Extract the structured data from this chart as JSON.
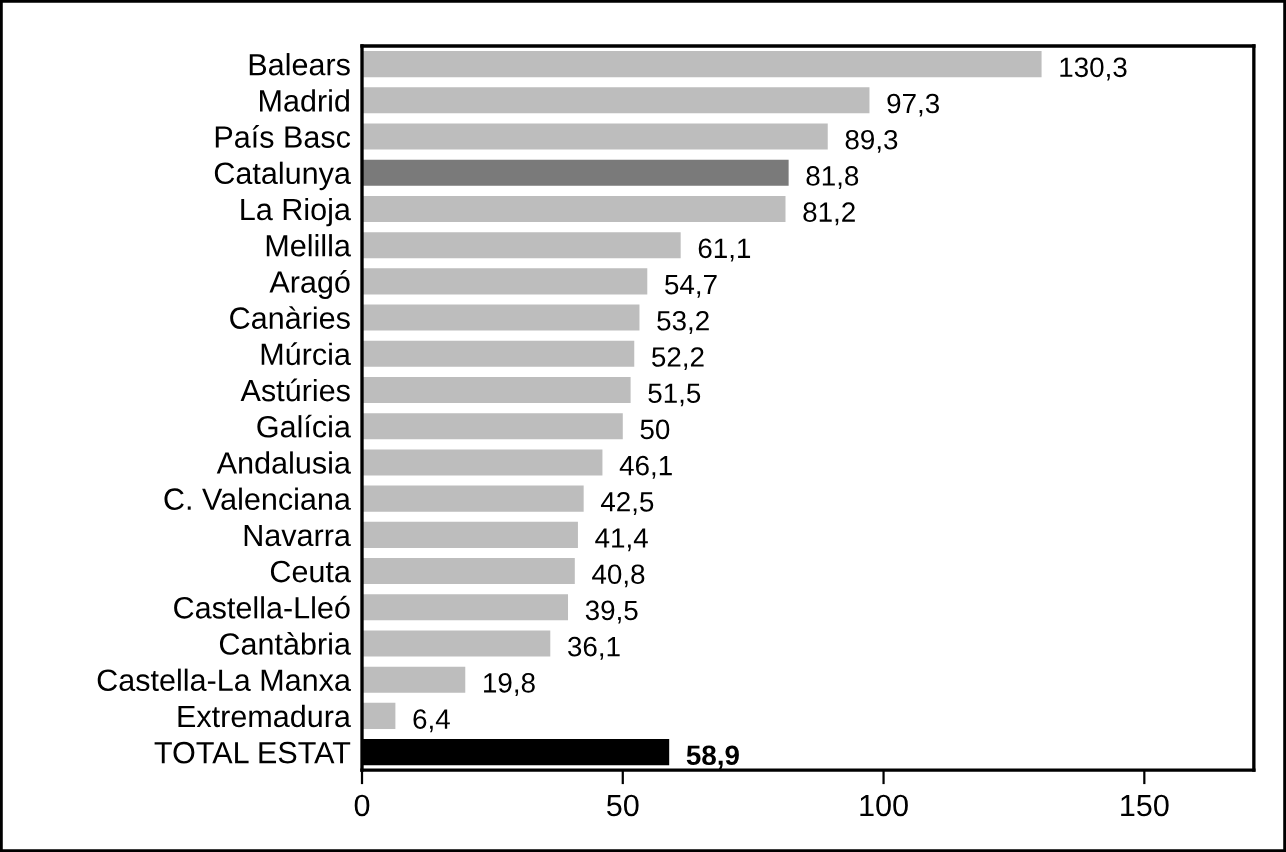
{
  "chart_data": {
    "type": "bar",
    "orientation": "horizontal",
    "categories": [
      "Balears",
      "Madrid",
      "País Basc",
      "Catalunya",
      "La Rioja",
      "Melilla",
      "Aragó",
      "Canàries",
      "Múrcia",
      "Astúries",
      "Galícia",
      "Andalusia",
      "C. Valenciana",
      "Navarra",
      "Ceuta",
      "Castella-Lleó",
      "Cantàbria",
      "Castella-La Manxa",
      "Extremadura",
      "TOTAL ESTAT"
    ],
    "values": [
      130.3,
      97.3,
      89.3,
      81.8,
      81.2,
      61.1,
      54.7,
      53.2,
      52.2,
      51.5,
      50,
      46.1,
      42.5,
      41.4,
      40.8,
      39.5,
      36.1,
      19.8,
      6.4,
      58.9
    ],
    "colors": [
      "#bdbdbd",
      "#bdbdbd",
      "#bdbdbd",
      "#7a7a7a",
      "#bdbdbd",
      "#bdbdbd",
      "#bdbdbd",
      "#bdbdbd",
      "#bdbdbd",
      "#bdbdbd",
      "#bdbdbd",
      "#bdbdbd",
      "#bdbdbd",
      "#bdbdbd",
      "#bdbdbd",
      "#bdbdbd",
      "#bdbdbd",
      "#bdbdbd",
      "#bdbdbd",
      "#000000"
    ],
    "value_labels": [
      "130,3",
      "97,3",
      "89,3",
      "81,8",
      "81,2",
      "61,1",
      "54,7",
      "53,2",
      "52,2",
      "51,5",
      "50",
      "46,1",
      "42,5",
      "41,4",
      "40,8",
      "39,5",
      "36,1",
      "19,8",
      "6,4",
      "58,9"
    ],
    "xlim": [
      0,
      171
    ],
    "xticks": [
      0,
      50,
      100,
      150
    ],
    "grid": false,
    "legend": false
  }
}
